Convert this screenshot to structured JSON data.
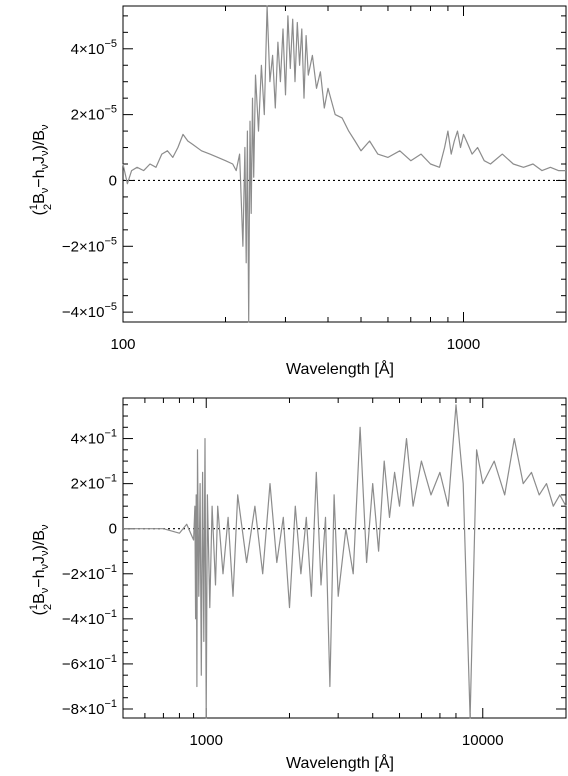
{
  "chart_data": [
    {
      "type": "line",
      "xscale": "log",
      "xlim": [
        100,
        2000
      ],
      "ylim": [
        -4.3e-05,
        5.3e-05
      ],
      "xlabel": "Wavelength [Å]",
      "ylabel_parts": [
        "(",
        "1",
        "2",
        "B",
        "ν",
        "−h",
        "ν",
        "J",
        "ν",
        ")/B",
        "ν"
      ],
      "x_major_ticks": [
        100,
        1000
      ],
      "x_tick_labels": [
        "100",
        "1000"
      ],
      "y_ticks": [
        -4e-05,
        -2e-05,
        0,
        2e-05,
        4e-05
      ],
      "y_tick_labels": [
        {
          "mant": "−4×10",
          "exp": "−5"
        },
        {
          "mant": "−2×10",
          "exp": "−5"
        },
        {
          "mant": "0",
          "exp": ""
        },
        {
          "mant": "2×10",
          "exp": "−5"
        },
        {
          "mant": "4×10",
          "exp": "−5"
        }
      ],
      "zero_line": "dotted",
      "series_color": "#8c8c8c",
      "x": [
        100,
        103,
        106,
        110,
        115,
        120,
        125,
        130,
        135,
        140,
        145,
        150,
        155,
        160,
        170,
        180,
        190,
        200,
        210,
        215,
        220,
        225,
        228,
        230,
        232,
        234,
        236,
        238,
        240,
        242,
        245,
        250,
        255,
        260,
        265,
        270,
        275,
        280,
        285,
        290,
        295,
        300,
        305,
        310,
        315,
        320,
        325,
        330,
        335,
        340,
        345,
        350,
        360,
        370,
        380,
        390,
        400,
        420,
        440,
        460,
        480,
        500,
        530,
        560,
        600,
        650,
        700,
        750,
        800,
        850,
        880,
        900,
        920,
        940,
        960,
        980,
        1000,
        1030,
        1060,
        1100,
        1150,
        1200,
        1300,
        1400,
        1500,
        1600,
        1700,
        1800,
        1900,
        2000
      ],
      "y": [
        5e-06,
        -1e-06,
        3e-06,
        4e-06,
        3e-06,
        5e-06,
        4e-06,
        8e-06,
        9e-06,
        7e-06,
        1e-05,
        1.4e-05,
        1.2e-05,
        1.1e-05,
        9e-06,
        8e-06,
        7e-06,
        6e-06,
        5e-06,
        3e-06,
        8e-06,
        -2e-05,
        1e-05,
        -2.5e-05,
        1.5e-05,
        -4.3e-05,
        1.8e-05,
        -1e-05,
        2.5e-05,
        1e-06,
        3.2e-05,
        1.5e-05,
        3.5e-05,
        2e-05,
        5.3e-05,
        3e-05,
        3.8e-05,
        2.2e-05,
        4.2e-05,
        3e-05,
        4.6e-05,
        2.6e-05,
        5e-05,
        3.4e-05,
        4.9e-05,
        3e-05,
        4.8e-05,
        3.5e-05,
        4.6e-05,
        2.5e-05,
        4.4e-05,
        3.2e-05,
        3.8e-05,
        2.8e-05,
        3.3e-05,
        2.2e-05,
        2.8e-05,
        2e-05,
        1.9e-05,
        1.5e-05,
        1.2e-05,
        9e-06,
        1.2e-05,
        8e-06,
        7e-06,
        9e-06,
        6e-06,
        8e-06,
        5e-06,
        4e-06,
        1e-05,
        1.5e-05,
        8e-06,
        1.2e-05,
        1.5e-05,
        1e-05,
        1.4e-05,
        1.1e-05,
        8e-06,
        1e-05,
        6e-06,
        5e-06,
        8e-06,
        5e-06,
        4e-06,
        5e-06,
        3e-06,
        4e-06,
        3e-06,
        3e-06
      ]
    },
    {
      "type": "line",
      "xscale": "log",
      "xlim": [
        500,
        20000
      ],
      "ylim": [
        -0.84,
        0.58
      ],
      "xlabel": "Wavelength [Å]",
      "ylabel_parts": [
        "(",
        "1",
        "2",
        "B",
        "ν",
        "−h",
        "ν",
        "J",
        "ν",
        ")/B",
        "ν"
      ],
      "x_major_ticks": [
        1000,
        10000
      ],
      "x_tick_labels": [
        "1000",
        "10000"
      ],
      "y_ticks": [
        -0.8,
        -0.6,
        -0.4,
        -0.2,
        0,
        0.2,
        0.4
      ],
      "y_tick_labels": [
        {
          "mant": "−8×10",
          "exp": "−1"
        },
        {
          "mant": "−6×10",
          "exp": "−1"
        },
        {
          "mant": "−4×10",
          "exp": "−1"
        },
        {
          "mant": "−2×10",
          "exp": "−1"
        },
        {
          "mant": "0",
          "exp": ""
        },
        {
          "mant": "2×10",
          "exp": "−1"
        },
        {
          "mant": "4×10",
          "exp": "−1"
        }
      ],
      "zero_line": "dotted",
      "series_color": "#8c8c8c",
      "x": [
        500,
        600,
        700,
        800,
        850,
        900,
        910,
        915,
        920,
        925,
        930,
        940,
        950,
        960,
        970,
        980,
        990,
        1000,
        1010,
        1030,
        1050,
        1080,
        1100,
        1150,
        1200,
        1250,
        1300,
        1400,
        1500,
        1600,
        1700,
        1800,
        1900,
        2000,
        2100,
        2200,
        2300,
        2400,
        2500,
        2600,
        2700,
        2800,
        2900,
        3000,
        3200,
        3400,
        3600,
        3800,
        4000,
        4200,
        4400,
        4600,
        4800,
        5000,
        5300,
        5600,
        6000,
        6500,
        7000,
        7500,
        8000,
        8500,
        9000,
        9500,
        10000,
        11000,
        12000,
        13000,
        14000,
        15000,
        16000,
        17000,
        18000,
        19000,
        20000
      ],
      "y": [
        0,
        0,
        0,
        -0.02,
        0.02,
        -0.05,
        0.1,
        -0.4,
        0.15,
        -0.7,
        0.35,
        -0.3,
        0.2,
        -0.65,
        0.25,
        -0.5,
        0.4,
        -0.84,
        0.15,
        -0.35,
        0.1,
        -0.25,
        0.1,
        -0.2,
        0.05,
        -0.3,
        0.15,
        -0.15,
        0.1,
        -0.2,
        0.2,
        -0.15,
        0.05,
        -0.35,
        0.1,
        -0.2,
        0.05,
        -0.3,
        0.25,
        -0.25,
        0.05,
        -0.7,
        0.15,
        -0.3,
        0.0,
        -0.2,
        0.45,
        -0.15,
        0.2,
        -0.1,
        0.3,
        0.05,
        0.25,
        0.1,
        0.4,
        0.1,
        0.3,
        0.15,
        0.25,
        0.1,
        0.55,
        0.2,
        -0.9,
        0.35,
        0.2,
        0.3,
        0.15,
        0.4,
        0.2,
        0.25,
        0.15,
        0.2,
        0.1,
        0.15,
        0.1
      ]
    }
  ]
}
